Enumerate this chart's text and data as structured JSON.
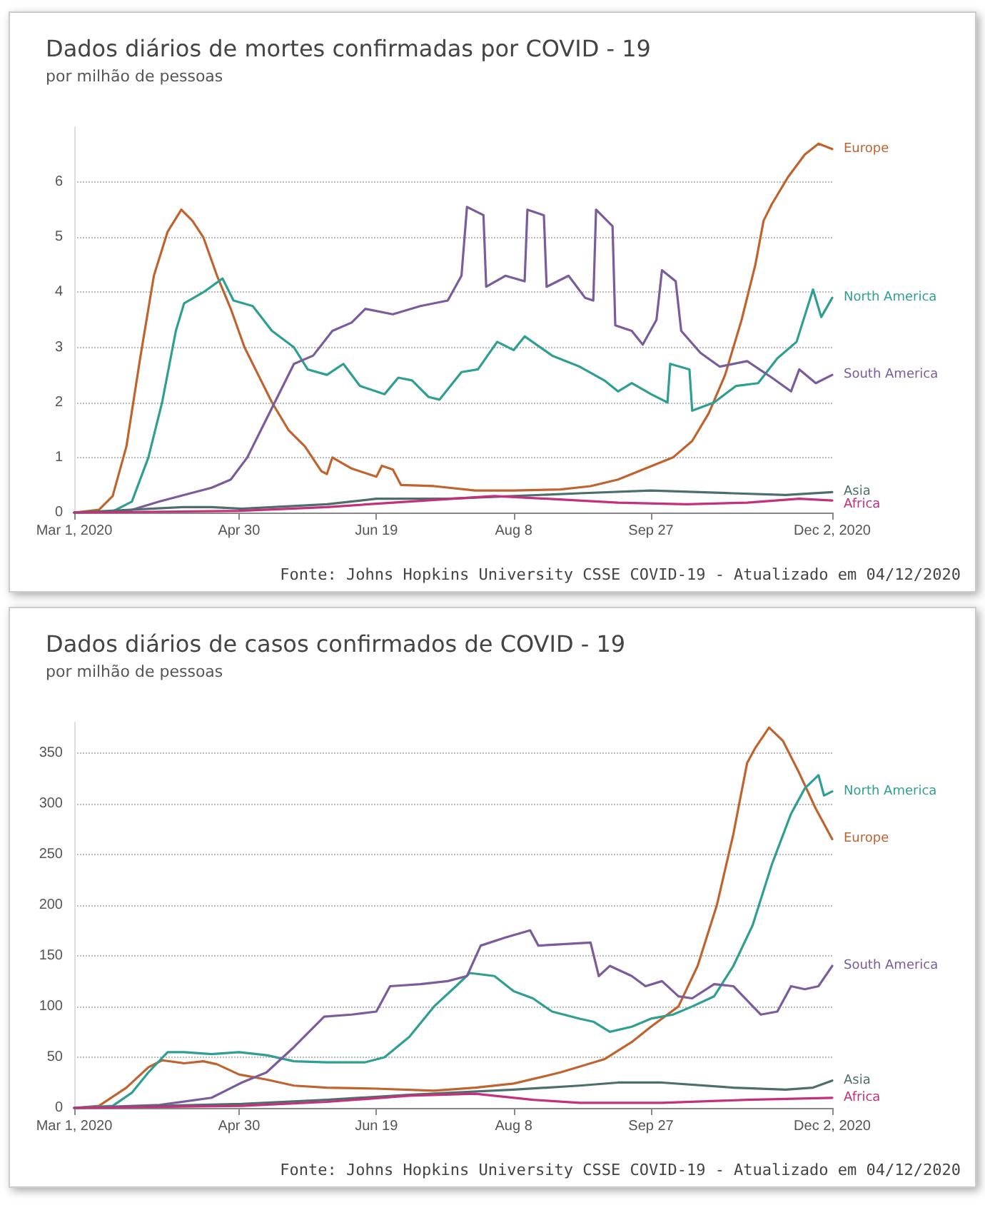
{
  "chart_data": [
    {
      "type": "line",
      "title": "Dados diários de mortes confirmadas por COVID - 19",
      "subtitle": "por milhão de pessoas",
      "annotations": [
        "Fonte: Johns Hopkins University CSSE COVID-19 - Atualizado em 04/12/2020"
      ],
      "grid": "y",
      "marker": "none",
      "line_style": "solid",
      "xlim": [
        "2020-03-01",
        "2020-12-02"
      ],
      "xticks": [
        {
          "value": "2020-03-01",
          "label": "Mar 1, 2020"
        },
        {
          "value": "2020-04-30",
          "label": "Apr 30"
        },
        {
          "value": "2020-06-19",
          "label": "Jun 19"
        },
        {
          "value": "2020-08-08",
          "label": "Aug 8"
        },
        {
          "value": "2020-09-27",
          "label": "Sep 27"
        },
        {
          "value": "2020-12-02",
          "label": "Dec 2, 2020"
        }
      ],
      "ylim": [
        0,
        7
      ],
      "yticks": [
        0,
        1,
        2,
        3,
        4,
        5,
        6
      ],
      "series": [
        {
          "name": "Europe",
          "color": "#c0642f",
          "x": [
            "2020-03-01",
            "2020-03-10",
            "2020-03-15",
            "2020-03-20",
            "2020-03-25",
            "2020-03-30",
            "2020-04-04",
            "2020-04-09",
            "2020-04-13",
            "2020-04-17",
            "2020-04-22",
            "2020-04-27",
            "2020-05-02",
            "2020-05-07",
            "2020-05-12",
            "2020-05-18",
            "2020-05-24",
            "2020-05-30",
            "2020-06-01",
            "2020-06-03",
            "2020-06-10",
            "2020-06-19",
            "2020-06-21",
            "2020-06-25",
            "2020-06-28",
            "2020-07-10",
            "2020-07-25",
            "2020-08-08",
            "2020-08-25",
            "2020-09-05",
            "2020-09-15",
            "2020-09-25",
            "2020-10-05",
            "2020-10-12",
            "2020-10-18",
            "2020-10-24",
            "2020-10-30",
            "2020-11-04",
            "2020-11-07",
            "2020-11-10",
            "2020-11-16",
            "2020-11-22",
            "2020-11-27",
            "2020-12-02"
          ],
          "values": [
            0,
            0.05,
            0.3,
            1.2,
            2.8,
            4.3,
            5.1,
            5.5,
            5.3,
            5.0,
            4.3,
            3.7,
            3.0,
            2.5,
            2.0,
            1.5,
            1.2,
            0.75,
            0.7,
            1.0,
            0.8,
            0.65,
            0.85,
            0.78,
            0.5,
            0.48,
            0.4,
            0.4,
            0.42,
            0.48,
            0.6,
            0.8,
            1.0,
            1.3,
            1.8,
            2.5,
            3.5,
            4.5,
            5.3,
            5.6,
            6.1,
            6.5,
            6.7,
            6.6
          ]
        },
        {
          "name": "North America",
          "color": "#2e9f92",
          "x": [
            "2020-03-01",
            "2020-03-15",
            "2020-03-22",
            "2020-03-28",
            "2020-04-02",
            "2020-04-07",
            "2020-04-10",
            "2020-04-17",
            "2020-04-24",
            "2020-04-28",
            "2020-05-05",
            "2020-05-12",
            "2020-05-20",
            "2020-05-25",
            "2020-06-01",
            "2020-06-07",
            "2020-06-13",
            "2020-06-22",
            "2020-06-27",
            "2020-07-02",
            "2020-07-08",
            "2020-07-12",
            "2020-07-20",
            "2020-07-26",
            "2020-08-02",
            "2020-08-08",
            "2020-08-12",
            "2020-08-22",
            "2020-09-01",
            "2020-09-10",
            "2020-09-15",
            "2020-09-20",
            "2020-09-27",
            "2020-10-03",
            "2020-10-04",
            "2020-10-11",
            "2020-10-12",
            "2020-10-20",
            "2020-10-28",
            "2020-11-05",
            "2020-11-12",
            "2020-11-19",
            "2020-11-25",
            "2020-11-28",
            "2020-12-02"
          ],
          "values": [
            0,
            0.02,
            0.2,
            1.0,
            2.0,
            3.3,
            3.8,
            4.0,
            4.25,
            3.85,
            3.75,
            3.3,
            3.0,
            2.6,
            2.5,
            2.7,
            2.3,
            2.15,
            2.45,
            2.4,
            2.1,
            2.05,
            2.55,
            2.6,
            3.1,
            2.95,
            3.2,
            2.85,
            2.65,
            2.4,
            2.2,
            2.35,
            2.15,
            2.0,
            2.7,
            2.6,
            1.85,
            2.0,
            2.3,
            2.35,
            2.8,
            3.1,
            4.05,
            3.55,
            3.9
          ]
        },
        {
          "name": "South America",
          "color": "#7a5c9c",
          "x": [
            "2020-03-01",
            "2020-03-20",
            "2020-04-01",
            "2020-04-20",
            "2020-04-27",
            "2020-05-03",
            "2020-05-08",
            "2020-05-13",
            "2020-05-20",
            "2020-05-27",
            "2020-06-03",
            "2020-06-10",
            "2020-06-15",
            "2020-06-25",
            "2020-07-05",
            "2020-07-15",
            "2020-07-20",
            "2020-07-22",
            "2020-07-28",
            "2020-07-29",
            "2020-08-05",
            "2020-08-12",
            "2020-08-13",
            "2020-08-19",
            "2020-08-20",
            "2020-08-28",
            "2020-09-03",
            "2020-09-06",
            "2020-09-07",
            "2020-09-13",
            "2020-09-14",
            "2020-09-20",
            "2020-09-24",
            "2020-09-29",
            "2020-10-01",
            "2020-10-06",
            "2020-10-08",
            "2020-10-15",
            "2020-10-22",
            "2020-11-01",
            "2020-11-10",
            "2020-11-17",
            "2020-11-20",
            "2020-11-26",
            "2020-12-02"
          ],
          "values": [
            0,
            0.02,
            0.2,
            0.45,
            0.6,
            1.0,
            1.5,
            2.0,
            2.7,
            2.85,
            3.3,
            3.45,
            3.7,
            3.6,
            3.75,
            3.85,
            4.3,
            5.55,
            5.4,
            4.1,
            4.3,
            4.2,
            5.5,
            5.4,
            4.1,
            4.3,
            3.9,
            3.85,
            5.5,
            5.2,
            3.4,
            3.3,
            3.05,
            3.5,
            4.4,
            4.2,
            3.3,
            2.9,
            2.65,
            2.75,
            2.45,
            2.2,
            2.6,
            2.35,
            2.5
          ]
        },
        {
          "name": "Asia",
          "color": "#4d6e6c",
          "x": [
            "2020-03-01",
            "2020-04-10",
            "2020-04-20",
            "2020-05-01",
            "2020-06-01",
            "2020-06-19",
            "2020-07-15",
            "2020-08-08",
            "2020-09-01",
            "2020-09-27",
            "2020-10-27",
            "2020-11-15",
            "2020-12-02"
          ],
          "values": [
            0,
            0.1,
            0.1,
            0.07,
            0.15,
            0.25,
            0.25,
            0.3,
            0.35,
            0.4,
            0.35,
            0.32,
            0.37
          ]
        },
        {
          "name": "Africa",
          "color": "#c4307c",
          "x": [
            "2020-03-01",
            "2020-04-30",
            "2020-06-01",
            "2020-07-01",
            "2020-08-01",
            "2020-08-20",
            "2020-09-15",
            "2020-10-10",
            "2020-11-01",
            "2020-11-20",
            "2020-12-02"
          ],
          "values": [
            0,
            0.03,
            0.1,
            0.2,
            0.3,
            0.25,
            0.18,
            0.15,
            0.18,
            0.25,
            0.22
          ]
        }
      ]
    },
    {
      "type": "line",
      "title": "Dados diários de casos confirmados de COVID - 19",
      "subtitle": "por milhão de pessoas",
      "annotations": [
        "Fonte: Johns Hopkins University CSSE COVID-19 - Atualizado em 04/12/2020"
      ],
      "grid": "y",
      "marker": "none",
      "line_style": "solid",
      "xlim": [
        "2020-03-01",
        "2020-12-02"
      ],
      "xticks": [
        {
          "value": "2020-03-01",
          "label": "Mar 1, 2020"
        },
        {
          "value": "2020-04-30",
          "label": "Apr 30"
        },
        {
          "value": "2020-06-19",
          "label": "Jun 19"
        },
        {
          "value": "2020-08-08",
          "label": "Aug 8"
        },
        {
          "value": "2020-09-27",
          "label": "Sep 27"
        },
        {
          "value": "2020-12-02",
          "label": "Dec 2, 2020"
        }
      ],
      "ylim": [
        0,
        380
      ],
      "yticks": [
        0,
        50,
        100,
        150,
        200,
        250,
        300,
        350
      ],
      "series": [
        {
          "name": "Europe",
          "color": "#c0642f",
          "x": [
            "2020-03-01",
            "2020-03-10",
            "2020-03-20",
            "2020-03-28",
            "2020-04-02",
            "2020-04-10",
            "2020-04-17",
            "2020-04-22",
            "2020-04-30",
            "2020-05-10",
            "2020-05-20",
            "2020-06-01",
            "2020-06-19",
            "2020-07-10",
            "2020-07-25",
            "2020-08-08",
            "2020-08-25",
            "2020-09-10",
            "2020-09-20",
            "2020-09-27",
            "2020-10-07",
            "2020-10-14",
            "2020-10-21",
            "2020-10-27",
            "2020-11-01",
            "2020-11-04",
            "2020-11-09",
            "2020-11-14",
            "2020-11-20",
            "2020-11-26",
            "2020-12-02"
          ],
          "values": [
            0,
            2,
            20,
            40,
            47,
            44,
            46,
            43,
            33,
            28,
            22,
            20,
            19,
            17,
            20,
            24,
            35,
            48,
            65,
            80,
            100,
            140,
            200,
            270,
            340,
            355,
            375,
            362,
            330,
            295,
            265
          ]
        },
        {
          "name": "North America",
          "color": "#2e9f92",
          "x": [
            "2020-03-01",
            "2020-03-15",
            "2020-03-22",
            "2020-03-28",
            "2020-04-04",
            "2020-04-10",
            "2020-04-20",
            "2020-04-30",
            "2020-05-10",
            "2020-05-20",
            "2020-06-01",
            "2020-06-15",
            "2020-06-22",
            "2020-07-01",
            "2020-07-10",
            "2020-07-18",
            "2020-07-23",
            "2020-08-01",
            "2020-08-08",
            "2020-08-15",
            "2020-08-22",
            "2020-09-01",
            "2020-09-06",
            "2020-09-12",
            "2020-09-20",
            "2020-09-27",
            "2020-10-05",
            "2020-10-12",
            "2020-10-20",
            "2020-10-27",
            "2020-11-03",
            "2020-11-10",
            "2020-11-17",
            "2020-11-22",
            "2020-11-27",
            "2020-11-29",
            "2020-12-02"
          ],
          "values": [
            0,
            2,
            15,
            35,
            55,
            55,
            53,
            55,
            52,
            46,
            45,
            45,
            50,
            70,
            100,
            120,
            133,
            130,
            115,
            108,
            95,
            88,
            85,
            75,
            80,
            88,
            92,
            100,
            110,
            140,
            180,
            240,
            290,
            315,
            328,
            308,
            312
          ]
        },
        {
          "name": "South America",
          "color": "#7a5c9c",
          "x": [
            "2020-03-01",
            "2020-04-01",
            "2020-04-20",
            "2020-05-01",
            "2020-05-10",
            "2020-05-20",
            "2020-05-31",
            "2020-06-10",
            "2020-06-19",
            "2020-06-24",
            "2020-07-05",
            "2020-07-15",
            "2020-07-22",
            "2020-07-27",
            "2020-08-05",
            "2020-08-14",
            "2020-08-17",
            "2020-09-05",
            "2020-09-08",
            "2020-09-12",
            "2020-09-20",
            "2020-09-25",
            "2020-10-01",
            "2020-10-07",
            "2020-10-12",
            "2020-10-20",
            "2020-10-27",
            "2020-11-06",
            "2020-11-12",
            "2020-11-17",
            "2020-11-22",
            "2020-11-27",
            "2020-12-02"
          ],
          "values": [
            0,
            3,
            10,
            25,
            35,
            60,
            90,
            92,
            95,
            120,
            122,
            125,
            130,
            160,
            168,
            175,
            160,
            163,
            130,
            140,
            130,
            120,
            125,
            110,
            108,
            122,
            120,
            92,
            95,
            120,
            117,
            120,
            140
          ]
        },
        {
          "name": "Asia",
          "color": "#4d6e6c",
          "x": [
            "2020-03-01",
            "2020-04-01",
            "2020-05-01",
            "2020-06-01",
            "2020-07-01",
            "2020-08-08",
            "2020-09-01",
            "2020-09-15",
            "2020-10-01",
            "2020-10-27",
            "2020-11-15",
            "2020-11-25",
            "2020-12-02"
          ],
          "values": [
            0,
            2,
            4,
            8,
            13,
            18,
            22,
            25,
            25,
            20,
            18,
            20,
            27
          ]
        },
        {
          "name": "Africa",
          "color": "#c4307c",
          "x": [
            "2020-03-01",
            "2020-05-01",
            "2020-06-01",
            "2020-07-01",
            "2020-07-25",
            "2020-08-15",
            "2020-09-01",
            "2020-10-01",
            "2020-11-01",
            "2020-12-02"
          ],
          "values": [
            0,
            2,
            6,
            12,
            14,
            8,
            5,
            5,
            8,
            10
          ]
        }
      ]
    }
  ]
}
